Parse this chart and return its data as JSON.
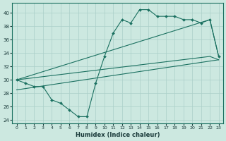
{
  "xlabel": "Humidex (Indice chaleur)",
  "bg_color": "#cce8e0",
  "line_color": "#1a7060",
  "grid_color": "#aacfc8",
  "xlim": [
    -0.5,
    23.5
  ],
  "ylim": [
    23.5,
    41.5
  ],
  "xticks": [
    0,
    1,
    2,
    3,
    4,
    5,
    6,
    7,
    8,
    9,
    10,
    11,
    12,
    13,
    14,
    15,
    16,
    17,
    18,
    19,
    20,
    21,
    22,
    23
  ],
  "yticks": [
    24,
    26,
    28,
    30,
    32,
    34,
    36,
    38,
    40
  ],
  "series1_x": [
    0,
    1,
    2,
    3,
    4,
    5,
    6,
    7,
    8,
    9,
    10,
    11,
    12,
    13,
    14,
    15,
    16,
    17,
    18,
    19,
    20,
    21,
    22,
    23
  ],
  "series1_y": [
    30.0,
    29.5,
    29.0,
    29.0,
    27.0,
    26.5,
    25.5,
    24.5,
    24.5,
    29.5,
    33.5,
    37.0,
    39.0,
    38.5,
    40.5,
    40.5,
    39.5,
    39.5,
    39.5,
    39.0,
    39.0,
    38.5,
    39.0,
    33.5
  ],
  "series2_x": [
    0,
    22,
    23
  ],
  "series2_y": [
    30.0,
    39.0,
    33.5
  ],
  "series3_x": [
    0,
    22,
    23
  ],
  "series3_y": [
    30.0,
    33.5,
    33.0
  ],
  "series4_x": [
    0,
    23
  ],
  "series4_y": [
    28.5,
    33.0
  ]
}
